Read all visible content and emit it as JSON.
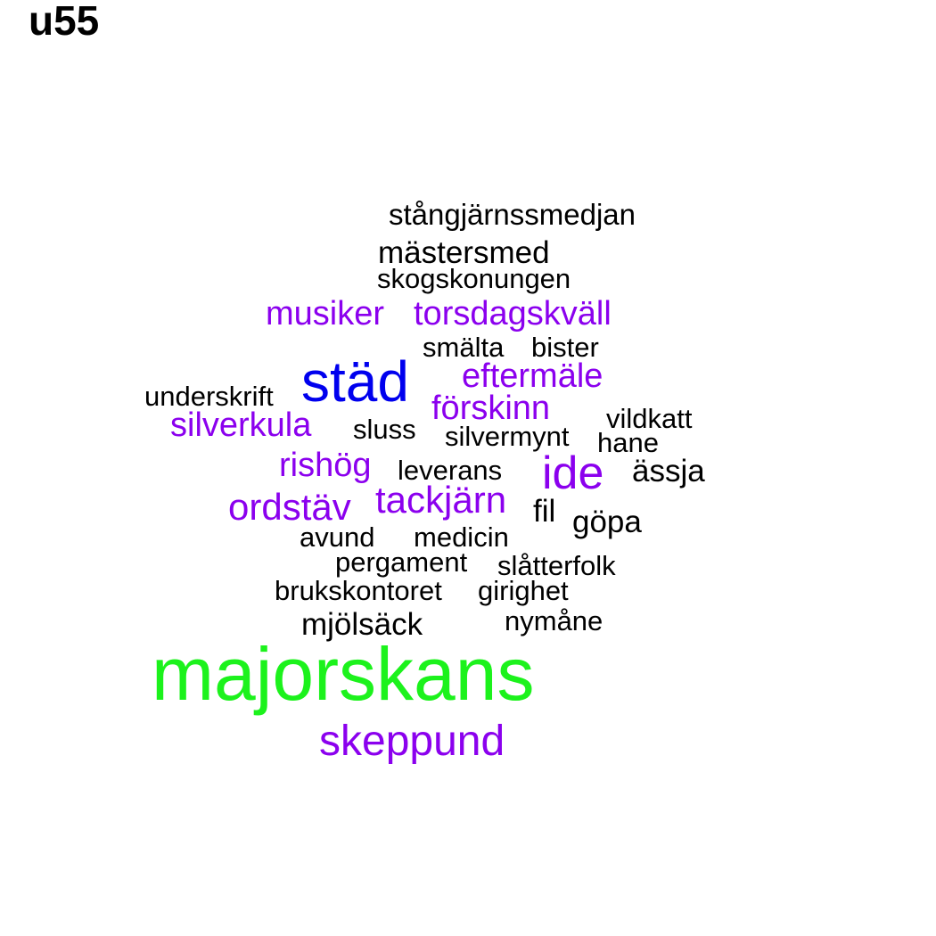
{
  "title": "u55",
  "colors": {
    "black": "#000000",
    "purple": "#8b00ee",
    "blue": "#0000ee",
    "green": "#1cf21c"
  },
  "words": [
    {
      "text": "stångjärnssmedjan",
      "color": "black"
    },
    {
      "text": "mästersmed",
      "color": "black"
    },
    {
      "text": "skogskonungen",
      "color": "black"
    },
    {
      "text": "musiker",
      "color": "purple"
    },
    {
      "text": "torsdagskväll",
      "color": "purple"
    },
    {
      "text": "smälta",
      "color": "black"
    },
    {
      "text": "bister",
      "color": "black"
    },
    {
      "text": "städ",
      "color": "blue"
    },
    {
      "text": "eftermäle",
      "color": "purple"
    },
    {
      "text": "underskrift",
      "color": "black"
    },
    {
      "text": "förskinn",
      "color": "purple"
    },
    {
      "text": "vildkatt",
      "color": "black"
    },
    {
      "text": "silverkula",
      "color": "purple"
    },
    {
      "text": "sluss",
      "color": "black"
    },
    {
      "text": "silvermynt",
      "color": "black"
    },
    {
      "text": "hane",
      "color": "black"
    },
    {
      "text": "rishög",
      "color": "purple"
    },
    {
      "text": "leverans",
      "color": "black"
    },
    {
      "text": "ide",
      "color": "purple"
    },
    {
      "text": "ässja",
      "color": "black"
    },
    {
      "text": "ordstäv",
      "color": "purple"
    },
    {
      "text": "tackjärn",
      "color": "purple"
    },
    {
      "text": "fil",
      "color": "black"
    },
    {
      "text": "göpa",
      "color": "black"
    },
    {
      "text": "avund",
      "color": "black"
    },
    {
      "text": "medicin",
      "color": "black"
    },
    {
      "text": "pergament",
      "color": "black"
    },
    {
      "text": "slåtterfolk",
      "color": "black"
    },
    {
      "text": "brukskontoret",
      "color": "black"
    },
    {
      "text": "girighet",
      "color": "black"
    },
    {
      "text": "mjölsäck",
      "color": "black"
    },
    {
      "text": "nymåne",
      "color": "black"
    },
    {
      "text": "majorskans",
      "color": "green"
    },
    {
      "text": "skeppund",
      "color": "purple"
    }
  ]
}
